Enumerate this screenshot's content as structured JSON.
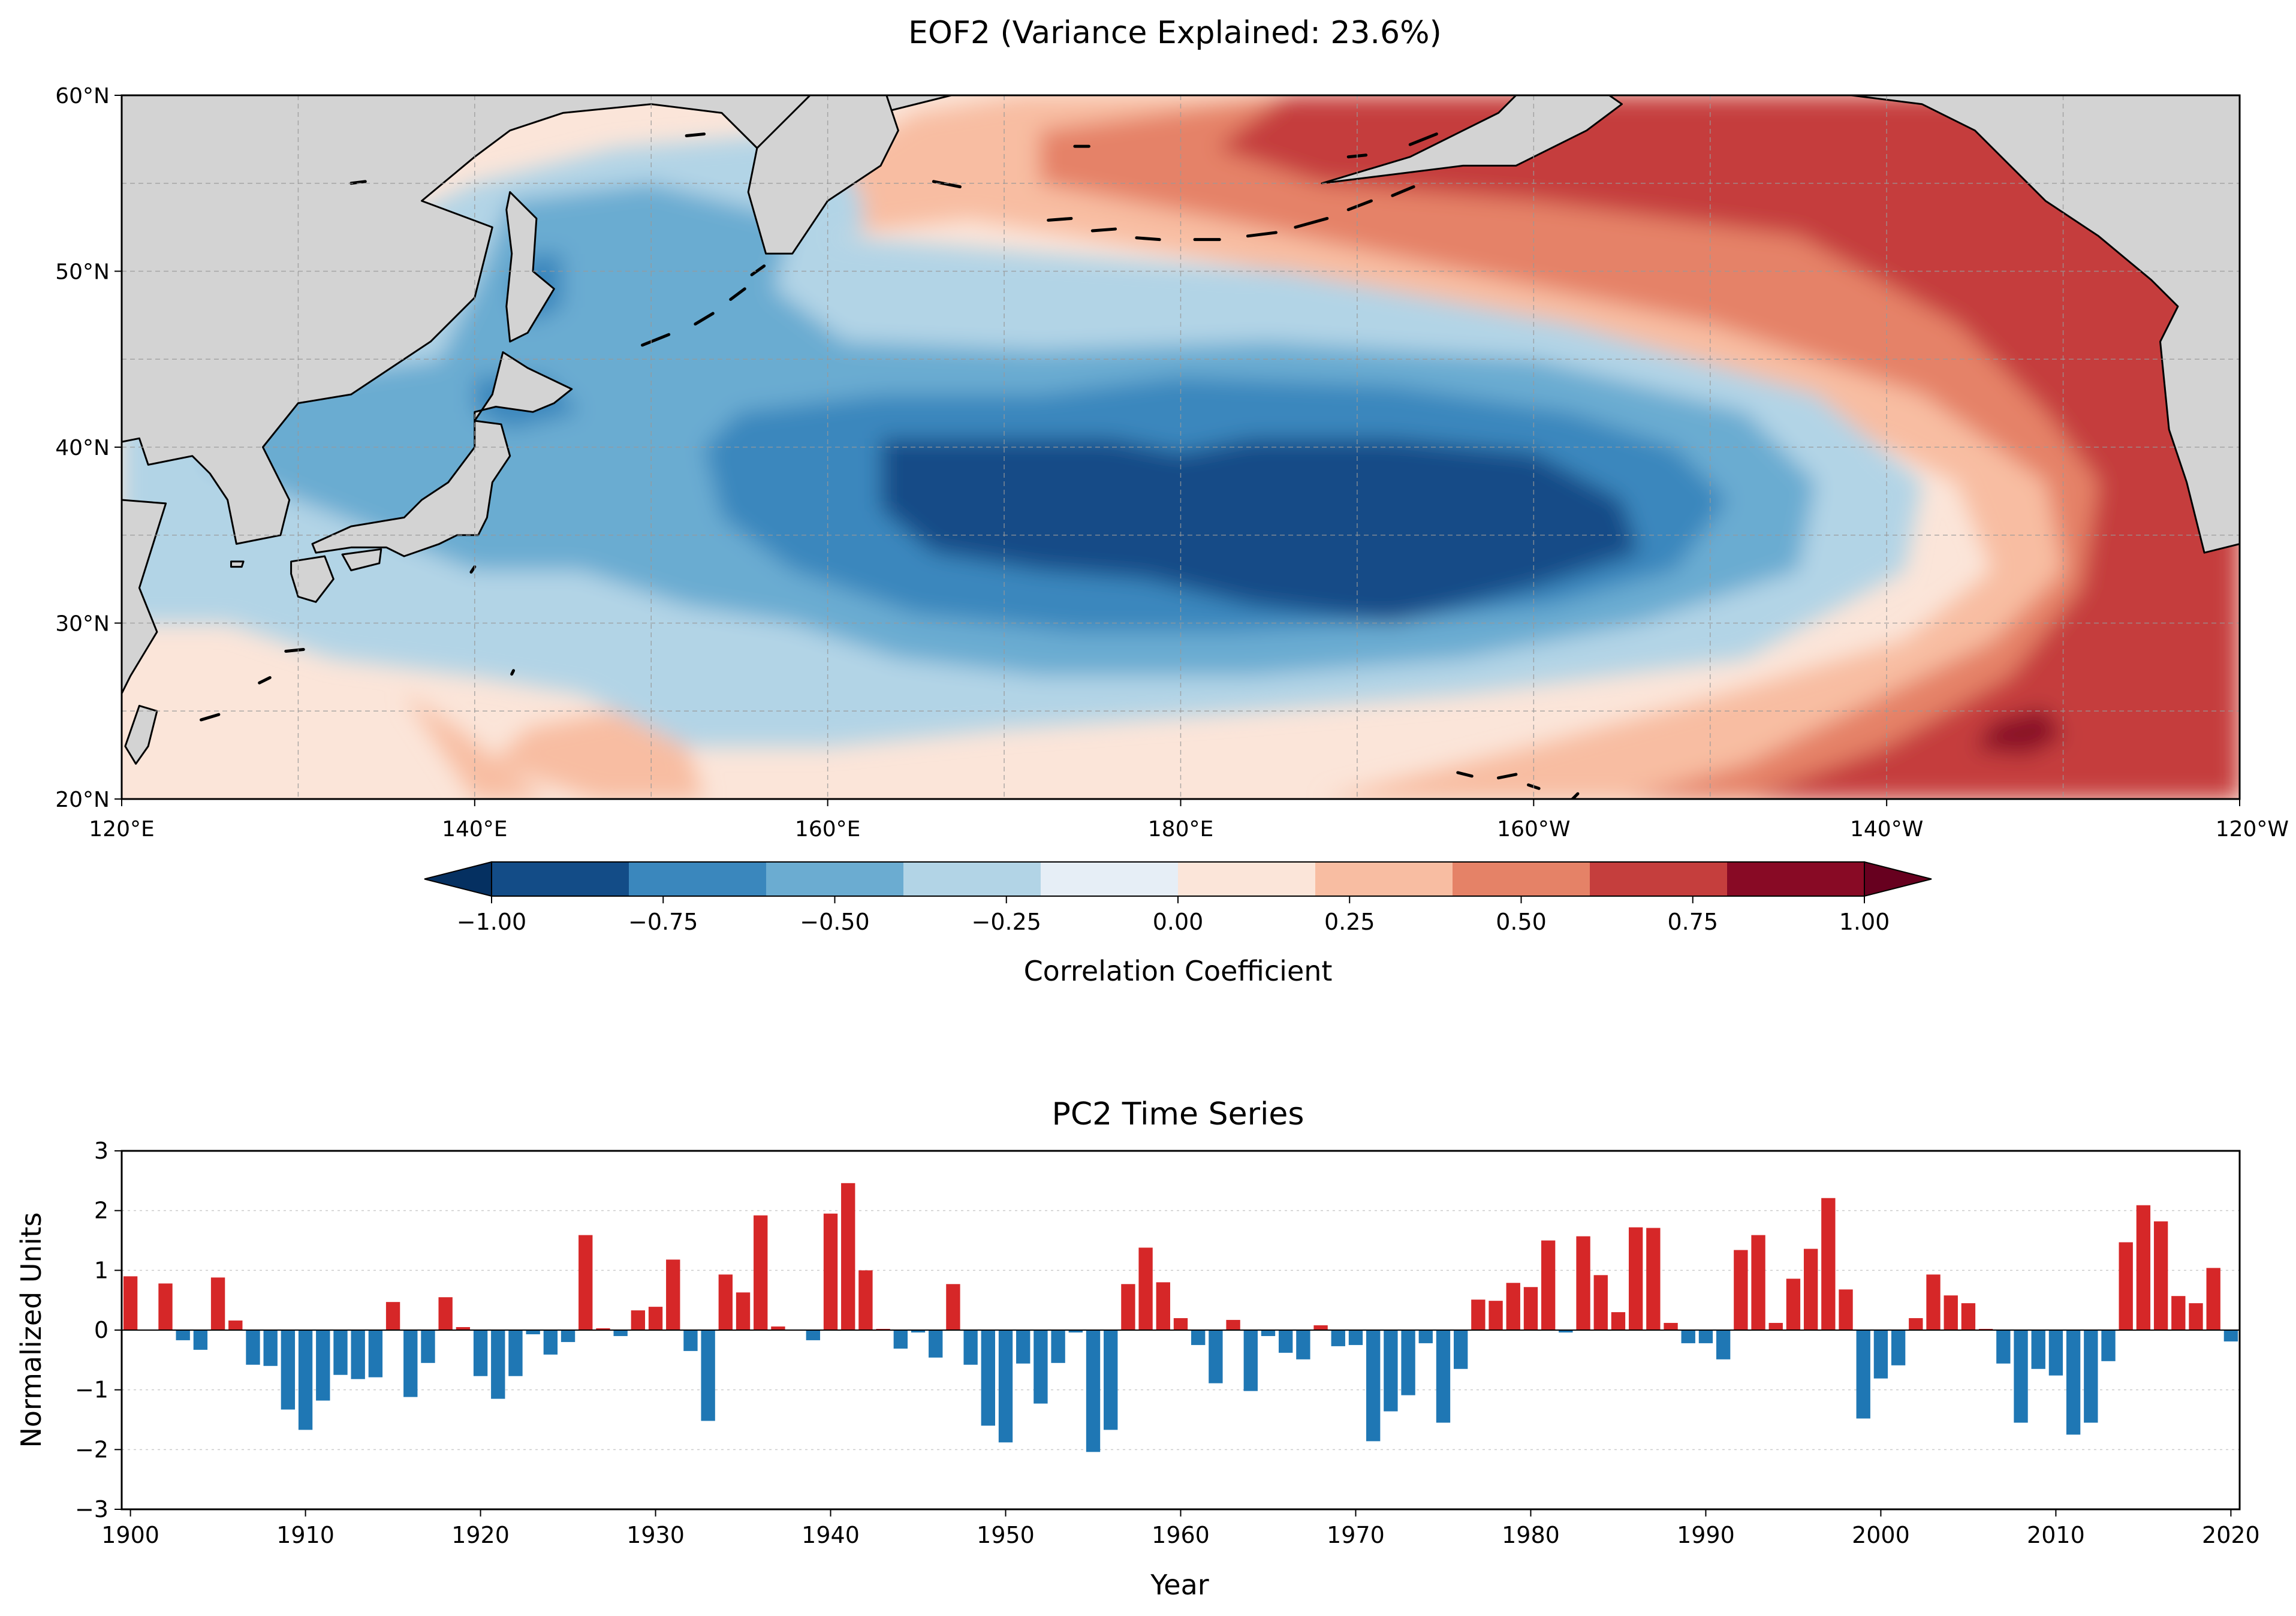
{
  "chart_data": [
    {
      "type": "heatmap",
      "title": "EOF2 (Variance Explained: 23.6%)",
      "lon_range": [
        120,
        240
      ],
      "lat_range": [
        20,
        60
      ],
      "lon_ticks": [
        "120°E",
        "140°E",
        "160°E",
        "180°E",
        "160°W",
        "140°W",
        "120°W"
      ],
      "lat_ticks": [
        "20°N",
        "30°N",
        "40°N",
        "50°N",
        "60°N"
      ],
      "colorbar": {
        "label": "Correlation Coefficient",
        "levels": [
          -1.0,
          -0.8,
          -0.6,
          -0.4,
          -0.2,
          0.0,
          0.2,
          0.4,
          0.6,
          0.8,
          1.0
        ],
        "tick_labels": [
          "−1.00",
          "−0.75",
          "−0.50",
          "−0.25",
          "0.00",
          "0.25",
          "0.50",
          "0.75",
          "1.00"
        ],
        "tick_values": [
          -1.0,
          -0.75,
          -0.5,
          -0.25,
          0.0,
          0.25,
          0.5,
          0.75,
          1.0
        ],
        "colors": [
          "#053061",
          "#134c87",
          "#3a87bd",
          "#6bacd1",
          "#b2d4e6",
          "#e6eef6",
          "#fbe5d9",
          "#f8bda2",
          "#e58267",
          "#c53e3d",
          "#880a25",
          "#67001f"
        ]
      },
      "colors": {
        "land": "#d3d3d3",
        "coast": "#000000",
        "grid": "#999999"
      }
    },
    {
      "type": "bar",
      "title": "PC2 Time Series",
      "xlabel": "Year",
      "ylabel": "Normalized Units",
      "xlim": [
        1899.5,
        2020.5
      ],
      "ylim": [
        -3,
        3
      ],
      "x_ticks": [
        "1900",
        "1910",
        "1920",
        "1930",
        "1940",
        "1950",
        "1960",
        "1970",
        "1980",
        "1990",
        "2000",
        "2010",
        "2020"
      ],
      "y_ticks": [
        "−3",
        "−2",
        "−1",
        "0",
        "1",
        "2",
        "3"
      ],
      "colors": {
        "positive": "#d62728",
        "negative": "#1f77b4"
      },
      "x": [
        1900,
        1901,
        1902,
        1903,
        1904,
        1905,
        1906,
        1907,
        1908,
        1909,
        1910,
        1911,
        1912,
        1913,
        1914,
        1915,
        1916,
        1917,
        1918,
        1919,
        1920,
        1921,
        1922,
        1923,
        1924,
        1925,
        1926,
        1927,
        1928,
        1929,
        1930,
        1931,
        1932,
        1933,
        1934,
        1935,
        1936,
        1937,
        1938,
        1939,
        1940,
        1941,
        1942,
        1943,
        1944,
        1945,
        1946,
        1947,
        1948,
        1949,
        1950,
        1951,
        1952,
        1953,
        1954,
        1955,
        1956,
        1957,
        1958,
        1959,
        1960,
        1961,
        1962,
        1963,
        1964,
        1965,
        1966,
        1967,
        1968,
        1969,
        1970,
        1971,
        1972,
        1973,
        1974,
        1975,
        1976,
        1977,
        1978,
        1979,
        1980,
        1981,
        1982,
        1983,
        1984,
        1985,
        1986,
        1987,
        1988,
        1989,
        1990,
        1991,
        1992,
        1993,
        1994,
        1995,
        1996,
        1997,
        1998,
        1999,
        2000,
        2001,
        2002,
        2003,
        2004,
        2005,
        2006,
        2007,
        2008,
        2009,
        2010,
        2011,
        2012,
        2013,
        2014,
        2015,
        2016,
        2017,
        2018,
        2019,
        2020
      ],
      "values": [
        0.9,
        0.01,
        0.78,
        -0.17,
        -0.33,
        0.88,
        0.16,
        -0.58,
        -0.6,
        -1.33,
        -1.67,
        -1.18,
        -0.75,
        -0.82,
        -0.79,
        0.47,
        -1.12,
        -0.55,
        0.55,
        0.05,
        -0.77,
        -1.15,
        -0.77,
        -0.07,
        -0.41,
        -0.2,
        1.59,
        0.03,
        -0.1,
        0.33,
        0.39,
        1.18,
        -0.35,
        -1.52,
        0.93,
        0.63,
        1.92,
        0.06,
        0.0,
        -0.17,
        1.95,
        2.46,
        1.0,
        0.02,
        -0.31,
        -0.04,
        -0.46,
        0.77,
        -0.58,
        -1.6,
        -1.88,
        -0.56,
        -1.23,
        -0.55,
        -0.04,
        -2.04,
        -1.67,
        0.77,
        1.38,
        0.8,
        0.2,
        -0.25,
        -0.89,
        0.17,
        -1.02,
        -0.1,
        -0.38,
        -0.49,
        0.08,
        -0.27,
        -0.25,
        -1.86,
        -1.36,
        -1.09,
        -0.22,
        -1.55,
        -0.65,
        0.51,
        0.49,
        0.79,
        0.72,
        1.5,
        -0.04,
        1.57,
        0.92,
        0.3,
        1.72,
        1.71,
        0.12,
        -0.22,
        -0.22,
        -0.49,
        1.34,
        1.59,
        0.12,
        0.86,
        1.36,
        2.21,
        0.68,
        -1.48,
        -0.81,
        -0.59,
        0.2,
        0.93,
        0.58,
        0.45,
        0.02,
        -0.56,
        -1.55,
        -0.65,
        -0.76,
        -1.75,
        -1.55,
        -0.52,
        1.47,
        2.09,
        1.82,
        0.57,
        0.45,
        1.04,
        -0.19
      ]
    }
  ]
}
